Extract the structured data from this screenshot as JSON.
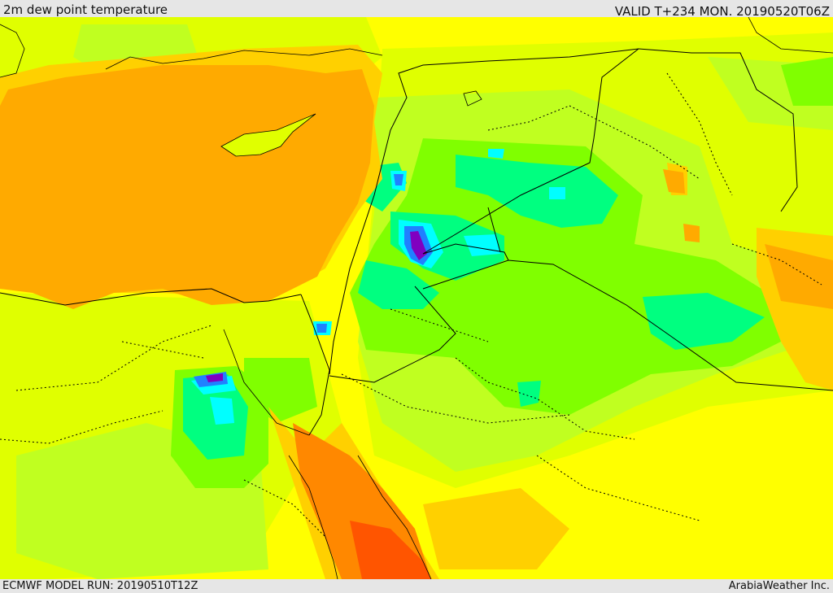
{
  "header": {
    "title": "2m dew point temperature",
    "valid": "VALID T+234 MON. 20190520T06Z"
  },
  "footer": {
    "model_run": "ECMWF MODEL RUN: 20190510T12Z",
    "credit": "ArabiaWeather Inc."
  },
  "colors": {
    "yellow": "#ffff00",
    "yellow_green": "#e0ff00",
    "lime": "#c0ff20",
    "green": "#80ff00",
    "spring_green": "#00ff80",
    "aqua": "#00ffd0",
    "cyan": "#00ffff",
    "blue": "#2080ff",
    "violet": "#8000c0",
    "amber": "#ffd000",
    "orange": "#ffaa00",
    "dark_orange": "#ff8800",
    "red_orange": "#ff5500",
    "border": "#000000"
  }
}
